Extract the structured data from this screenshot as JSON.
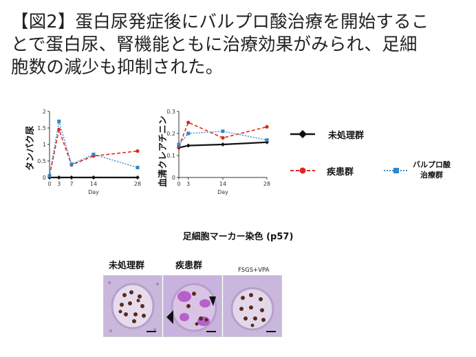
{
  "title_lines": [
    "【図2】蛋白尿発症後にバルプロ酸治療を開始するこ",
    "とで蛋白尿、腎機能ともに治療効果がみられ、足細",
    "胞数の減少も抑制された。"
  ],
  "legend": {
    "control": "未処理群",
    "disease": "疾患群",
    "vpa_line1": "バルプロ酸",
    "vpa_line2": "治療群"
  },
  "staining": {
    "title": "足細胞マーカー染色 (p57)",
    "panels": [
      "未処理群",
      "疾患群",
      "FSGS+VPA"
    ]
  },
  "colors": {
    "control": "#111111",
    "disease": "#e0261c",
    "vpa": "#2f86c9"
  },
  "chart_data": [
    {
      "type": "line",
      "ylabel": "タンパク尿",
      "xlabel": "Day",
      "x": [
        0,
        3,
        7,
        14,
        28
      ],
      "xticks": [
        "0",
        "3",
        "7",
        "14",
        "28"
      ],
      "ylim": [
        0,
        2
      ],
      "yticks": [
        "0",
        "0.5",
        "1",
        "1.5",
        "2"
      ],
      "series": [
        {
          "key": "control",
          "values": [
            0.0,
            0.0,
            0.0,
            0.0,
            0.0
          ]
        },
        {
          "key": "disease",
          "values": [
            0.05,
            1.45,
            0.38,
            0.65,
            0.8
          ]
        },
        {
          "key": "vpa",
          "values": [
            0.05,
            1.7,
            0.4,
            0.7,
            0.3
          ]
        }
      ]
    },
    {
      "type": "line",
      "ylabel": "血清クレアチニン",
      "xlabel": "Day",
      "x": [
        0,
        3,
        14,
        28
      ],
      "xticks": [
        "0",
        "3",
        "14",
        "28"
      ],
      "ylim": [
        0,
        0.3
      ],
      "yticks": [
        "0",
        "0.1",
        "0.2",
        "0.3"
      ],
      "series": [
        {
          "key": "control",
          "values": [
            0.135,
            0.145,
            0.15,
            0.16
          ]
        },
        {
          "key": "disease",
          "values": [
            0.14,
            0.25,
            0.18,
            0.23
          ]
        },
        {
          "key": "vpa",
          "values": [
            0.15,
            0.2,
            0.21,
            0.17
          ]
        }
      ]
    }
  ]
}
